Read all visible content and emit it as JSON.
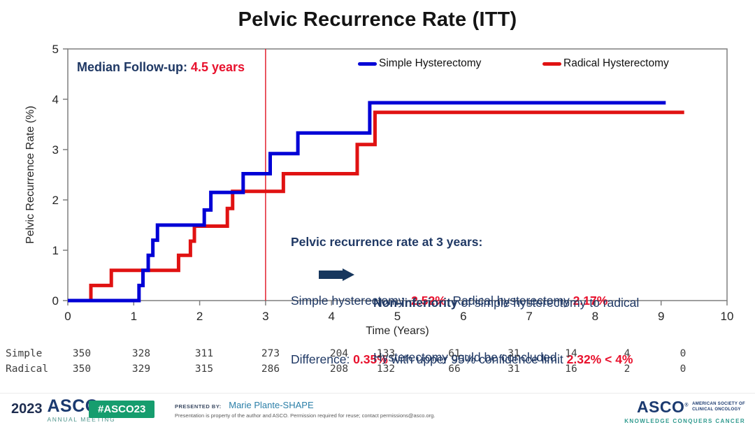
{
  "title": "Pelvic Recurrence Rate (ITT)",
  "median": {
    "segments": [
      {
        "t": "Median Follow-up: ",
        "s": "navybold"
      },
      {
        "t": "4.5 years",
        "s": "redbold"
      }
    ]
  },
  "annotation": {
    "lines": [
      [
        {
          "t": "Pelvic recurrence rate at 3 years:",
          "s": "navybold"
        }
      ],
      [
        {
          "t": "Simple hysterectomy: ",
          "s": "navy"
        },
        {
          "t": "2.52%",
          "s": "redbold"
        },
        {
          "t": "  Radical hysterectomy ",
          "s": "navy"
        },
        {
          "t": "2.17%",
          "s": "redbold"
        }
      ],
      [
        {
          "t": "Difference: ",
          "s": "navy"
        },
        {
          "t": "0.35%",
          "s": "redbold"
        },
        {
          "t": " with upper 95% confidence limit ",
          "s": "navy"
        },
        {
          "t": "2.32% < 4%",
          "s": "redbold"
        }
      ]
    ]
  },
  "conclusion": {
    "lines": [
      [
        {
          "t": "Non-inferiority",
          "s": "navybold"
        },
        {
          "t": " of simple hysterectomy to radical",
          "s": "navy"
        }
      ],
      [
        {
          "t": "Hysterectomy could be concluded",
          "s": "navy"
        }
      ]
    ]
  },
  "chart_data": {
    "type": "line",
    "step": true,
    "title": "Pelvic Recurrence Rate (ITT)",
    "xlabel": "Time (Years)",
    "ylabel": "Pelvic Recurrence Rate (%)",
    "xlim": [
      0,
      10
    ],
    "ylim": [
      0,
      5
    ],
    "x_ticks": [
      0,
      1,
      2,
      3,
      4,
      5,
      6,
      7,
      8,
      9,
      10
    ],
    "y_ticks": [
      0,
      1,
      2,
      3,
      4,
      5
    ],
    "grid": false,
    "legend_position": "top-inside",
    "reference_line_x": 3,
    "reference_line_color": "#e01020",
    "series": [
      {
        "name": "Simple Hysterectomy",
        "color": "#0000d6",
        "end_x": 9.07,
        "points": [
          [
            0,
            0
          ],
          [
            1.08,
            0.3
          ],
          [
            1.14,
            0.6
          ],
          [
            1.22,
            0.9
          ],
          [
            1.29,
            1.2
          ],
          [
            1.36,
            1.5
          ],
          [
            2.07,
            1.8
          ],
          [
            2.17,
            2.15
          ],
          [
            2.66,
            2.52
          ],
          [
            3.07,
            2.92
          ],
          [
            3.49,
            3.33
          ],
          [
            4.58,
            3.93
          ]
        ]
      },
      {
        "name": "Radical Hysterectomy",
        "color": "#e01212",
        "end_x": 9.35,
        "points": [
          [
            0,
            0
          ],
          [
            0.35,
            0.3
          ],
          [
            0.66,
            0.6
          ],
          [
            1.68,
            0.9
          ],
          [
            1.86,
            1.18
          ],
          [
            1.92,
            1.48
          ],
          [
            2.42,
            1.83
          ],
          [
            2.5,
            2.17
          ],
          [
            3.27,
            2.52
          ],
          [
            4.39,
            3.1
          ],
          [
            4.66,
            3.74
          ]
        ]
      }
    ],
    "at_risk": {
      "rows": [
        {
          "label": "Simple",
          "values": [
            350,
            328,
            311,
            273,
            204,
            133,
            61,
            31,
            14,
            4,
            0
          ]
        },
        {
          "label": "Radical",
          "values": [
            350,
            329,
            315,
            286,
            208,
            132,
            66,
            31,
            16,
            2,
            0
          ]
        }
      ]
    }
  },
  "footer": {
    "year": "2023",
    "org": "ASCO",
    "reg": "®",
    "org_sub": "ANNUAL MEETING",
    "hashtag": "#ASCO23",
    "presented_by_label": "PRESENTED BY:",
    "presenter": "Marie Plante-SHAPE",
    "disclaimer": "Presentation is property of the author and ASCO. Permission required for reuse; contact permissions@asco.org.",
    "right_org": "ASCO",
    "right_sub1": "AMERICAN SOCIETY OF",
    "right_sub2": "CLINICAL ONCOLOGY",
    "right_tagline": "KNOWLEDGE CONQUERS CANCER"
  }
}
